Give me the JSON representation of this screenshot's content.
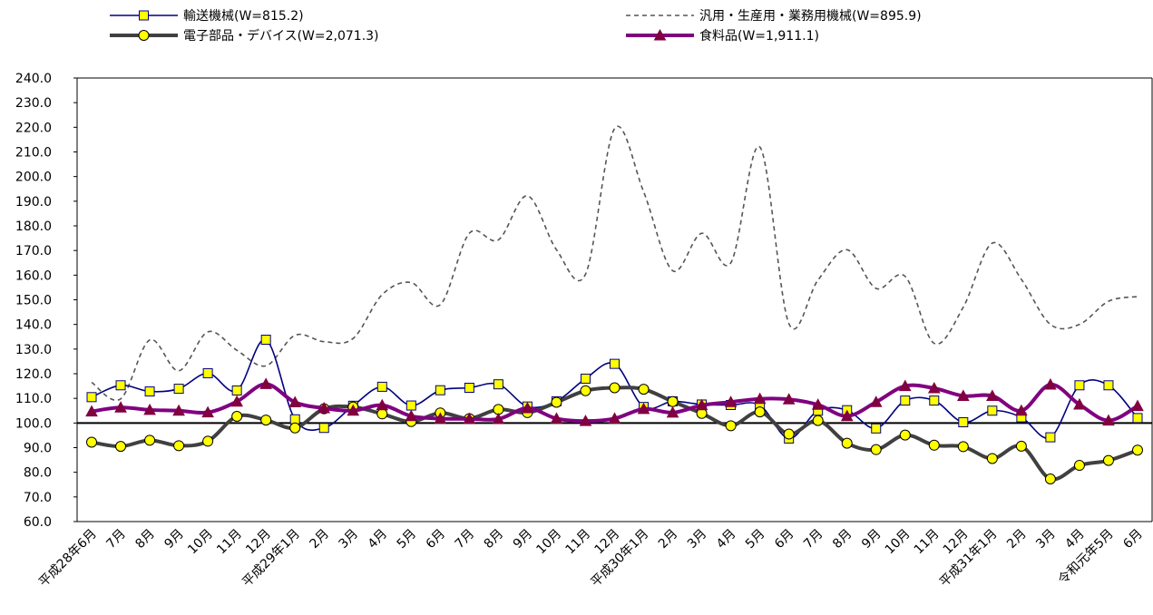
{
  "chart_data": {
    "type": "line",
    "categories": [
      "平成28年6月",
      "7月",
      "8月",
      "9月",
      "10月",
      "11月",
      "12月",
      "平成29年1月",
      "2月",
      "3月",
      "4月",
      "5月",
      "6月",
      "7月",
      "8月",
      "9月",
      "10月",
      "11月",
      "12月",
      "平成30年1月",
      "2月",
      "3月",
      "4月",
      "5月",
      "6月",
      "7月",
      "8月",
      "9月",
      "10月",
      "11月",
      "12月",
      "平成31年1月",
      "2月",
      "3月",
      "4月",
      "令和元年5月",
      "6月"
    ],
    "ylim": [
      60,
      240
    ],
    "yticks": [
      "60.0",
      "70.0",
      "80.0",
      "90.0",
      "100.0",
      "110.0",
      "120.0",
      "130.0",
      "140.0",
      "150.0",
      "160.0",
      "170.0",
      "180.0",
      "190.0",
      "200.0",
      "210.0",
      "220.0",
      "230.0",
      "240.0"
    ],
    "reference_line": 100,
    "grid": false,
    "series": [
      {
        "name": "輸送機械(W=815.2)",
        "color": "#000080",
        "marker": "square",
        "marker_fill": "#ffff00",
        "values": [
          110.5,
          115.3,
          112.8,
          113.9,
          120.2,
          113.2,
          133.8,
          101.5,
          98.0,
          107.0,
          114.7,
          107.1,
          113.3,
          114.3,
          115.7,
          106.7,
          108.8,
          118.0,
          124.0,
          106.5,
          108.8,
          107.5,
          107.3,
          107.2,
          93.7,
          105.0,
          105.2,
          97.8,
          109.1,
          109.1,
          100.3,
          105.0,
          102.3,
          94.2,
          115.3,
          115.3,
          102.0
        ]
      },
      {
        "name": "汎用・生産用・業務用機械(W=895.9)",
        "color": "#555555",
        "marker": "none",
        "dashed": true,
        "values": [
          116.5,
          109.8,
          133.7,
          121.2,
          137.0,
          129.5,
          123.2,
          135.6,
          133.0,
          134.3,
          152.1,
          157.0,
          148.0,
          177.0,
          174.3,
          192.2,
          170.3,
          160.4,
          219.5,
          193.8,
          161.8,
          177.0,
          165.0,
          212.0,
          140.3,
          158.0,
          170.3,
          154.6,
          159.5,
          132.3,
          147.0,
          173.0,
          158.3,
          140.0,
          140.0,
          149.4,
          151.3
        ]
      },
      {
        "name": "電子部品・デバイス(W=2,071.3)",
        "color": "#404040",
        "marker": "circle",
        "marker_fill": "#ffff00",
        "values": [
          92.2,
          90.5,
          93.0,
          90.8,
          92.6,
          102.7,
          101.2,
          98.0,
          105.8,
          106.5,
          103.7,
          100.6,
          104.1,
          101.8,
          105.5,
          104.2,
          108.4,
          113.1,
          114.3,
          113.7,
          108.7,
          103.9,
          98.9,
          104.5,
          95.5,
          101.0,
          91.8,
          89.2,
          95.1,
          91.0,
          90.4,
          85.6,
          90.6,
          77.3,
          82.8,
          84.8,
          89.0
        ]
      },
      {
        "name": "食料品(W=1,911.1)",
        "color": "#800080",
        "marker": "triangle",
        "marker_fill": "#800040",
        "values": [
          104.7,
          106.3,
          105.3,
          105.0,
          104.3,
          108.7,
          115.8,
          108.4,
          106.0,
          105.0,
          107.2,
          102.8,
          101.8,
          101.7,
          101.6,
          106.0,
          101.8,
          100.8,
          101.8,
          105.7,
          104.2,
          107.2,
          108.5,
          109.8,
          109.6,
          107.4,
          102.8,
          108.5,
          115.0,
          114.1,
          111.0,
          111.0,
          105.0,
          115.6,
          107.5,
          101.0,
          106.9
        ]
      }
    ]
  }
}
